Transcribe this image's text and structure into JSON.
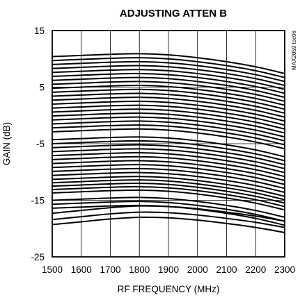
{
  "chart_data": {
    "type": "line",
    "title": "ADJUSTING ATTEN B",
    "xlabel": "RF FREQUENCY (MHz)",
    "ylabel": "GAIN (dB)",
    "figure_code": "MAX2059 toc06",
    "xlim": [
      1500,
      2300
    ],
    "ylim": [
      -25,
      15
    ],
    "x_ticks": [
      1500,
      1600,
      1700,
      1800,
      1900,
      2000,
      2100,
      2200,
      2300
    ],
    "y_ticks": [
      15,
      5,
      -5,
      -15,
      -25
    ],
    "grid": true,
    "legend": "none",
    "x": [
      1500,
      1600,
      1700,
      1800,
      1900,
      2000,
      2100,
      2200,
      2300
    ],
    "series": [
      {
        "values": [
          10.4,
          10.6,
          10.8,
          10.9,
          10.7,
          10.2,
          9.5,
          8.6,
          7.4
        ]
      },
      {
        "values": [
          9.7,
          9.9,
          10.1,
          10.2,
          10.0,
          9.5,
          8.8,
          7.9,
          6.7
        ]
      },
      {
        "values": [
          9.0,
          9.2,
          9.4,
          9.5,
          9.3,
          8.8,
          8.1,
          7.2,
          6.0
        ]
      },
      {
        "values": [
          8.3,
          8.5,
          8.7,
          8.8,
          8.6,
          8.1,
          7.4,
          6.5,
          5.3
        ]
      },
      {
        "values": [
          7.6,
          7.8,
          8.0,
          8.1,
          7.9,
          7.4,
          6.7,
          5.8,
          4.6
        ]
      },
      {
        "values": [
          6.9,
          7.1,
          7.3,
          7.4,
          7.2,
          6.7,
          6.0,
          5.1,
          3.9
        ]
      },
      {
        "values": [
          6.2,
          6.4,
          6.6,
          6.7,
          6.5,
          6.0,
          5.3,
          4.4,
          3.2
        ]
      },
      {
        "values": [
          5.5,
          5.7,
          5.9,
          6.0,
          5.8,
          5.3,
          4.6,
          3.7,
          2.5
        ]
      },
      {
        "values": [
          4.8,
          5.0,
          5.2,
          5.3,
          5.1,
          4.6,
          3.9,
          3.0,
          1.8
        ]
      },
      {
        "values": [
          4.1,
          4.3,
          4.5,
          4.6,
          4.4,
          3.9,
          3.2,
          2.3,
          1.1
        ]
      },
      {
        "values": [
          3.4,
          3.6,
          3.8,
          3.9,
          3.7,
          3.2,
          2.5,
          1.6,
          0.4
        ]
      },
      {
        "values": [
          2.7,
          2.9,
          3.1,
          3.2,
          3.0,
          2.5,
          1.8,
          0.9,
          -0.3
        ]
      },
      {
        "values": [
          2.0,
          2.2,
          2.4,
          2.5,
          2.3,
          1.8,
          1.1,
          0.2,
          -1.0
        ]
      },
      {
        "values": [
          1.3,
          1.5,
          1.7,
          1.8,
          1.6,
          1.1,
          0.4,
          -0.5,
          -1.7
        ]
      },
      {
        "values": [
          0.6,
          0.8,
          1.0,
          1.1,
          0.9,
          0.4,
          -0.3,
          -1.2,
          -2.4
        ]
      },
      {
        "values": [
          -0.1,
          0.1,
          0.3,
          0.4,
          0.2,
          -0.3,
          -1.0,
          -1.9,
          -3.1
        ]
      },
      {
        "values": [
          -0.8,
          -0.6,
          -0.4,
          -0.3,
          -0.5,
          -1.0,
          -1.7,
          -2.6,
          -3.8
        ]
      },
      {
        "values": [
          -1.5,
          -1.3,
          -1.1,
          -1.0,
          -1.2,
          -1.7,
          -2.4,
          -3.3,
          -4.5
        ]
      },
      {
        "values": [
          -2.2,
          -2.0,
          -1.8,
          -1.7,
          -1.9,
          -2.4,
          -3.1,
          -4.0,
          -5.2
        ]
      },
      {
        "values": [
          -2.9,
          -2.7,
          -2.5,
          -2.4,
          -2.6,
          -3.1,
          -3.8,
          -4.7,
          -5.9
        ]
      },
      {
        "values": [
          -4.3,
          -4.1,
          -3.9,
          -3.8,
          -4.0,
          -4.5,
          -5.2,
          -6.1,
          -7.3
        ]
      },
      {
        "values": [
          -5.0,
          -4.8,
          -4.6,
          -4.5,
          -4.7,
          -5.2,
          -5.9,
          -6.8,
          -8.0
        ]
      },
      {
        "values": [
          -5.7,
          -5.5,
          -5.3,
          -5.2,
          -5.4,
          -5.9,
          -6.6,
          -7.5,
          -8.7
        ]
      },
      {
        "values": [
          -6.4,
          -6.2,
          -6.0,
          -5.9,
          -6.1,
          -6.6,
          -7.3,
          -8.2,
          -9.4
        ]
      },
      {
        "values": [
          -7.1,
          -6.9,
          -6.7,
          -6.6,
          -6.8,
          -7.3,
          -8.0,
          -8.9,
          -10.1
        ]
      },
      {
        "values": [
          -7.8,
          -7.6,
          -7.4,
          -7.3,
          -7.5,
          -8.0,
          -8.7,
          -9.6,
          -10.8
        ]
      },
      {
        "values": [
          -8.5,
          -8.3,
          -8.1,
          -8.0,
          -8.2,
          -8.7,
          -9.4,
          -10.3,
          -11.5
        ]
      },
      {
        "values": [
          -9.2,
          -9.0,
          -8.8,
          -8.7,
          -8.9,
          -9.4,
          -10.1,
          -11.0,
          -12.2
        ]
      },
      {
        "values": [
          -9.9,
          -9.7,
          -9.5,
          -9.4,
          -9.6,
          -10.1,
          -10.8,
          -11.7,
          -12.9
        ]
      },
      {
        "values": [
          -10.6,
          -10.4,
          -10.2,
          -10.1,
          -10.3,
          -10.8,
          -11.5,
          -12.4,
          -13.6
        ]
      },
      {
        "values": [
          -11.3,
          -11.1,
          -10.9,
          -10.8,
          -11.0,
          -11.5,
          -12.2,
          -13.1,
          -14.3
        ]
      },
      {
        "values": [
          -11.9,
          -11.7,
          -11.5,
          -11.4,
          -11.6,
          -12.1,
          -12.8,
          -13.7,
          -14.9
        ]
      },
      {
        "values": [
          -12.5,
          -12.3,
          -12.1,
          -12.0,
          -12.2,
          -12.7,
          -13.4,
          -14.3,
          -15.5
        ]
      },
      {
        "values": [
          -13.1,
          -12.9,
          -12.7,
          -12.6,
          -12.8,
          -13.3,
          -14.0,
          -14.9,
          -16.1
        ]
      },
      {
        "values": [
          -13.7,
          -13.5,
          -13.3,
          -13.2,
          -13.4,
          -13.9,
          -14.6,
          -15.5,
          -16.7
        ]
      },
      {
        "values": [
          -15.0,
          -14.8,
          -14.6,
          -14.5,
          -14.7,
          -15.2,
          -15.9,
          -16.8,
          -18.0
        ]
      },
      {
        "values": [
          -15.7,
          -15.5,
          -15.3,
          -15.2,
          -15.4,
          -15.9,
          -16.6,
          -17.5,
          -18.7
        ]
      },
      {
        "values": [
          -16.4,
          -16.2,
          -16.0,
          -15.9,
          -16.1,
          -16.6,
          -17.3,
          -18.2,
          -19.4
        ]
      },
      {
        "values": [
          -17.3,
          -16.8,
          -16.3,
          -16.0,
          -16.1,
          -16.5,
          -17.1,
          -17.8,
          -18.7
        ]
      },
      {
        "values": [
          -18.4,
          -17.9,
          -17.4,
          -17.1,
          -17.2,
          -17.6,
          -18.2,
          -18.9,
          -19.8
        ]
      },
      {
        "values": [
          -19.3,
          -18.8,
          -18.3,
          -18.0,
          -18.1,
          -18.5,
          -19.1,
          -19.8,
          -20.7
        ]
      }
    ]
  }
}
